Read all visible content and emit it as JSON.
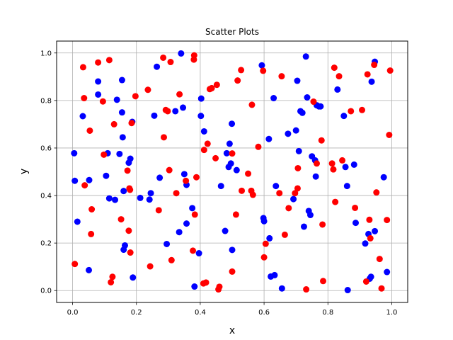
{
  "chart_data": {
    "type": "scatter",
    "title": "Scatter Plots",
    "xlabel": "x",
    "ylabel": "y",
    "xlim": [
      -0.05,
      1.05
    ],
    "ylim": [
      -0.05,
      1.05
    ],
    "grid": true,
    "xticks": [
      "0.0",
      "0.2",
      "0.4",
      "0.6",
      "0.8",
      "1.0"
    ],
    "yticks": [
      "0.0",
      "0.2",
      "0.4",
      "0.6",
      "0.8",
      "1.0"
    ],
    "series": [
      {
        "color": "#0000ff",
        "points": [
          [
            0.005,
            0.578
          ],
          [
            0.007,
            0.462
          ],
          [
            0.015,
            0.29
          ],
          [
            0.032,
            0.734
          ],
          [
            0.051,
            0.086
          ],
          [
            0.052,
            0.465
          ],
          [
            0.08,
            0.88
          ],
          [
            0.08,
            0.825
          ],
          [
            0.105,
            0.483
          ],
          [
            0.11,
            0.578
          ],
          [
            0.115,
            0.388
          ],
          [
            0.133,
            0.382
          ],
          [
            0.139,
            0.803
          ],
          [
            0.147,
            0.575
          ],
          [
            0.155,
            0.886
          ],
          [
            0.155,
            0.75
          ],
          [
            0.157,
            0.645
          ],
          [
            0.16,
            0.419
          ],
          [
            0.16,
            0.172
          ],
          [
            0.164,
            0.19
          ],
          [
            0.176,
            0.538
          ],
          [
            0.181,
            0.555
          ],
          [
            0.187,
            0.71
          ],
          [
            0.189,
            0.055
          ],
          [
            0.212,
            0.39
          ],
          [
            0.241,
            0.383
          ],
          [
            0.245,
            0.41
          ],
          [
            0.256,
            0.736
          ],
          [
            0.264,
            0.942
          ],
          [
            0.273,
            0.475
          ],
          [
            0.295,
            0.196
          ],
          [
            0.322,
            0.755
          ],
          [
            0.334,
            0.246
          ],
          [
            0.34,
            0.998
          ],
          [
            0.346,
            0.77
          ],
          [
            0.35,
            0.49
          ],
          [
            0.357,
            0.445
          ],
          [
            0.357,
            0.282
          ],
          [
            0.375,
            0.347
          ],
          [
            0.382,
            0.017
          ],
          [
            0.396,
            0.157
          ],
          [
            0.402,
            0.735
          ],
          [
            0.403,
            0.808
          ],
          [
            0.412,
            0.67
          ],
          [
            0.465,
            0.44
          ],
          [
            0.478,
            0.251
          ],
          [
            0.483,
            0.578
          ],
          [
            0.489,
            0.52
          ],
          [
            0.492,
            0.618
          ],
          [
            0.496,
            0.535
          ],
          [
            0.499,
            0.702
          ],
          [
            0.5,
            0.171
          ],
          [
            0.514,
            0.507
          ],
          [
            0.593,
            0.948
          ],
          [
            0.598,
            0.305
          ],
          [
            0.6,
            0.292
          ],
          [
            0.615,
            0.638
          ],
          [
            0.617,
            0.22
          ],
          [
            0.621,
            0.059
          ],
          [
            0.63,
            0.81
          ],
          [
            0.633,
            0.065
          ],
          [
            0.637,
            0.44
          ],
          [
            0.656,
            0.009
          ],
          [
            0.675,
            0.66
          ],
          [
            0.692,
            0.385
          ],
          [
            0.7,
            0.674
          ],
          [
            0.704,
            0.883
          ],
          [
            0.709,
            0.587
          ],
          [
            0.714,
            0.755
          ],
          [
            0.72,
            0.748
          ],
          [
            0.725,
            0.269
          ],
          [
            0.731,
            0.985
          ],
          [
            0.735,
            0.813
          ],
          [
            0.74,
            0.335
          ],
          [
            0.745,
            0.318
          ],
          [
            0.75,
            0.565
          ],
          [
            0.76,
            0.548
          ],
          [
            0.762,
            0.48
          ],
          [
            0.765,
            0.78
          ],
          [
            0.772,
            0.775
          ],
          [
            0.777,
            0.775
          ],
          [
            0.83,
            0.846
          ],
          [
            0.85,
            0.735
          ],
          [
            0.855,
            0.52
          ],
          [
            0.86,
            0.44
          ],
          [
            0.862,
            0.002
          ],
          [
            0.882,
            0.53
          ],
          [
            0.887,
            0.285
          ],
          [
            0.917,
            0.198
          ],
          [
            0.927,
            0.238
          ],
          [
            0.931,
            0.05
          ],
          [
            0.935,
            0.058
          ],
          [
            0.937,
            0.879
          ],
          [
            0.947,
            0.963
          ],
          [
            0.947,
            0.25
          ],
          [
            0.975,
            0.477
          ],
          [
            0.985,
            0.078
          ]
        ]
      },
      {
        "color": "#ff0000",
        "points": [
          [
            0.007,
            0.112
          ],
          [
            0.033,
            0.94
          ],
          [
            0.036,
            0.81
          ],
          [
            0.038,
            0.443
          ],
          [
            0.054,
            0.673
          ],
          [
            0.058,
            0.238
          ],
          [
            0.06,
            0.342
          ],
          [
            0.08,
            0.96
          ],
          [
            0.095,
            0.796
          ],
          [
            0.098,
            0.572
          ],
          [
            0.115,
            0.97
          ],
          [
            0.12,
            0.035
          ],
          [
            0.125,
            0.058
          ],
          [
            0.13,
            0.7
          ],
          [
            0.152,
            0.3
          ],
          [
            0.172,
            0.505
          ],
          [
            0.176,
            0.252
          ],
          [
            0.178,
            0.43
          ],
          [
            0.18,
            0.424
          ],
          [
            0.181,
            0.16
          ],
          [
            0.185,
            0.705
          ],
          [
            0.197,
            0.818
          ],
          [
            0.236,
            0.845
          ],
          [
            0.243,
            0.102
          ],
          [
            0.27,
            0.338
          ],
          [
            0.284,
            0.98
          ],
          [
            0.286,
            0.645
          ],
          [
            0.292,
            0.76
          ],
          [
            0.298,
            0.755
          ],
          [
            0.303,
            0.507
          ],
          [
            0.307,
            0.962
          ],
          [
            0.31,
            0.128
          ],
          [
            0.325,
            0.41
          ],
          [
            0.335,
            0.826
          ],
          [
            0.355,
            0.462
          ],
          [
            0.377,
            0.168
          ],
          [
            0.38,
            0.972
          ],
          [
            0.381,
            0.99
          ],
          [
            0.383,
            0.32
          ],
          [
            0.388,
            0.477
          ],
          [
            0.41,
            0.03
          ],
          [
            0.412,
            0.592
          ],
          [
            0.418,
            0.034
          ],
          [
            0.423,
            0.618
          ],
          [
            0.43,
            0.848
          ],
          [
            0.436,
            0.852
          ],
          [
            0.448,
            0.557
          ],
          [
            0.452,
            0.866
          ],
          [
            0.457,
            0.005
          ],
          [
            0.46,
            0.016
          ],
          [
            0.5,
            0.577
          ],
          [
            0.5,
            0.08
          ],
          [
            0.512,
            0.32
          ],
          [
            0.517,
            0.884
          ],
          [
            0.528,
            0.928
          ],
          [
            0.53,
            0.42
          ],
          [
            0.55,
            0.492
          ],
          [
            0.56,
            0.42
          ],
          [
            0.562,
            0.782
          ],
          [
            0.565,
            0.403
          ],
          [
            0.582,
            0.605
          ],
          [
            0.597,
            0.925
          ],
          [
            0.6,
            0.14
          ],
          [
            0.605,
            0.197
          ],
          [
            0.648,
            0.41
          ],
          [
            0.655,
            0.902
          ],
          [
            0.665,
            0.235
          ],
          [
            0.677,
            0.347
          ],
          [
            0.697,
            0.41
          ],
          [
            0.705,
            0.43
          ],
          [
            0.706,
            0.515
          ],
          [
            0.732,
            0.005
          ],
          [
            0.755,
            0.795
          ],
          [
            0.765,
            0.535
          ],
          [
            0.78,
            0.632
          ],
          [
            0.783,
            0.278
          ],
          [
            0.785,
            0.04
          ],
          [
            0.813,
            0.535
          ],
          [
            0.817,
            0.51
          ],
          [
            0.82,
            0.938
          ],
          [
            0.823,
            0.373
          ],
          [
            0.835,
            0.902
          ],
          [
            0.845,
            0.548
          ],
          [
            0.872,
            0.755
          ],
          [
            0.885,
            0.348
          ],
          [
            0.907,
            0.76
          ],
          [
            0.92,
            0.038
          ],
          [
            0.924,
            0.91
          ],
          [
            0.93,
            0.298
          ],
          [
            0.933,
            0.22
          ],
          [
            0.945,
            0.95
          ],
          [
            0.952,
            0.413
          ],
          [
            0.962,
            0.133
          ],
          [
            0.968,
            0.009
          ],
          [
            0.985,
            0.297
          ],
          [
            0.992,
            0.655
          ],
          [
            0.995,
            0.926
          ]
        ]
      }
    ]
  }
}
